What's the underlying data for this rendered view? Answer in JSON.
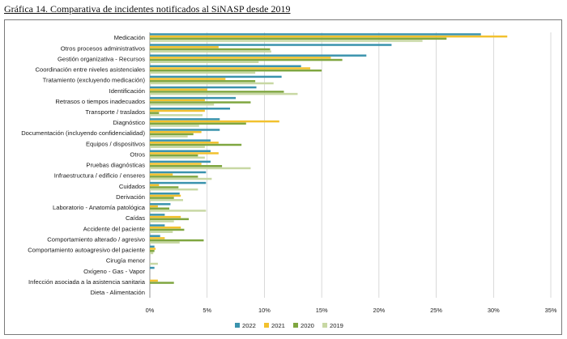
{
  "page_title": "Gráfica 14. Comparativa de incidentes notificados al SiNASP desde 2019",
  "colors": {
    "2022": "#3a93ad",
    "2021": "#f2c12e",
    "2020": "#7fa640",
    "2019": "#c8d8a4",
    "grid": "#c9c9c9",
    "axis": "#8a8a8a"
  },
  "chart_data": {
    "type": "bar",
    "orientation": "horizontal",
    "title": "",
    "xlabel": "",
    "ylabel": "",
    "xlim": [
      0,
      35
    ],
    "x_ticks": [
      "0%",
      "5%",
      "10%",
      "15%",
      "20%",
      "25%",
      "30%",
      "35%"
    ],
    "grid": true,
    "legend_position": "bottom",
    "categories": [
      "Medicación",
      "Otros procesos administrativos",
      "Gestión organizativa - Recursos",
      "Coordinación entre niveles asistenciales",
      "Tratamiento (excluyendo medicación)",
      "Identificación",
      "Retrasos o tiempos inadecuados",
      "Transporte / traslados",
      "Diagnóstico",
      "Documentación (incluyendo confidencialidad)",
      "Equipos / dispositivos",
      "Otros",
      "Pruebas diagnósticas",
      "Infraestructura / edificio / enseres",
      "Cuidados",
      "Derivación",
      "Laboratorio - Anatomía patológica",
      "Caídas",
      "Accidente del paciente",
      "Comportamiento alterado / agresivo",
      "Comportamiento autoagresivo del paciente",
      "Cirugía menor",
      "Oxígeno - Gas - Vapor",
      "Infección asociada a la asistencia sanitaria",
      "Dieta - Alimentación"
    ],
    "series": [
      {
        "name": "2022",
        "values": [
          28.9,
          21.1,
          18.9,
          13.2,
          11.5,
          9.3,
          7.5,
          7.0,
          6.1,
          6.1,
          5.3,
          5.3,
          5.3,
          4.9,
          4.9,
          2.6,
          1.8,
          1.3,
          1.3,
          0.9,
          0.4,
          0.0,
          0.4,
          0.0,
          0.0
        ]
      },
      {
        "name": "2021",
        "values": [
          31.2,
          6.0,
          15.8,
          14.0,
          6.6,
          5.0,
          4.8,
          4.8,
          11.3,
          4.5,
          6.0,
          6.0,
          4.5,
          2.0,
          0.8,
          2.7,
          0.7,
          2.7,
          2.7,
          1.3,
          0.5,
          0.0,
          0.0,
          0.7,
          0.0
        ]
      },
      {
        "name": "2020",
        "values": [
          25.9,
          10.5,
          16.8,
          15.0,
          9.2,
          11.7,
          8.8,
          0.8,
          8.4,
          3.8,
          8.0,
          4.2,
          6.3,
          4.2,
          2.5,
          2.1,
          1.7,
          3.4,
          3.0,
          4.7,
          0.4,
          0.0,
          0.0,
          2.1,
          0.0
        ]
      },
      {
        "name": "2019",
        "values": [
          23.8,
          10.6,
          9.5,
          9.2,
          10.8,
          12.9,
          5.6,
          4.6,
          4.3,
          3.3,
          4.8,
          4.8,
          8.8,
          5.4,
          4.2,
          2.9,
          4.9,
          2.1,
          2.0,
          2.6,
          0.3,
          0.7,
          0.0,
          0.0,
          0.0
        ]
      }
    ]
  }
}
